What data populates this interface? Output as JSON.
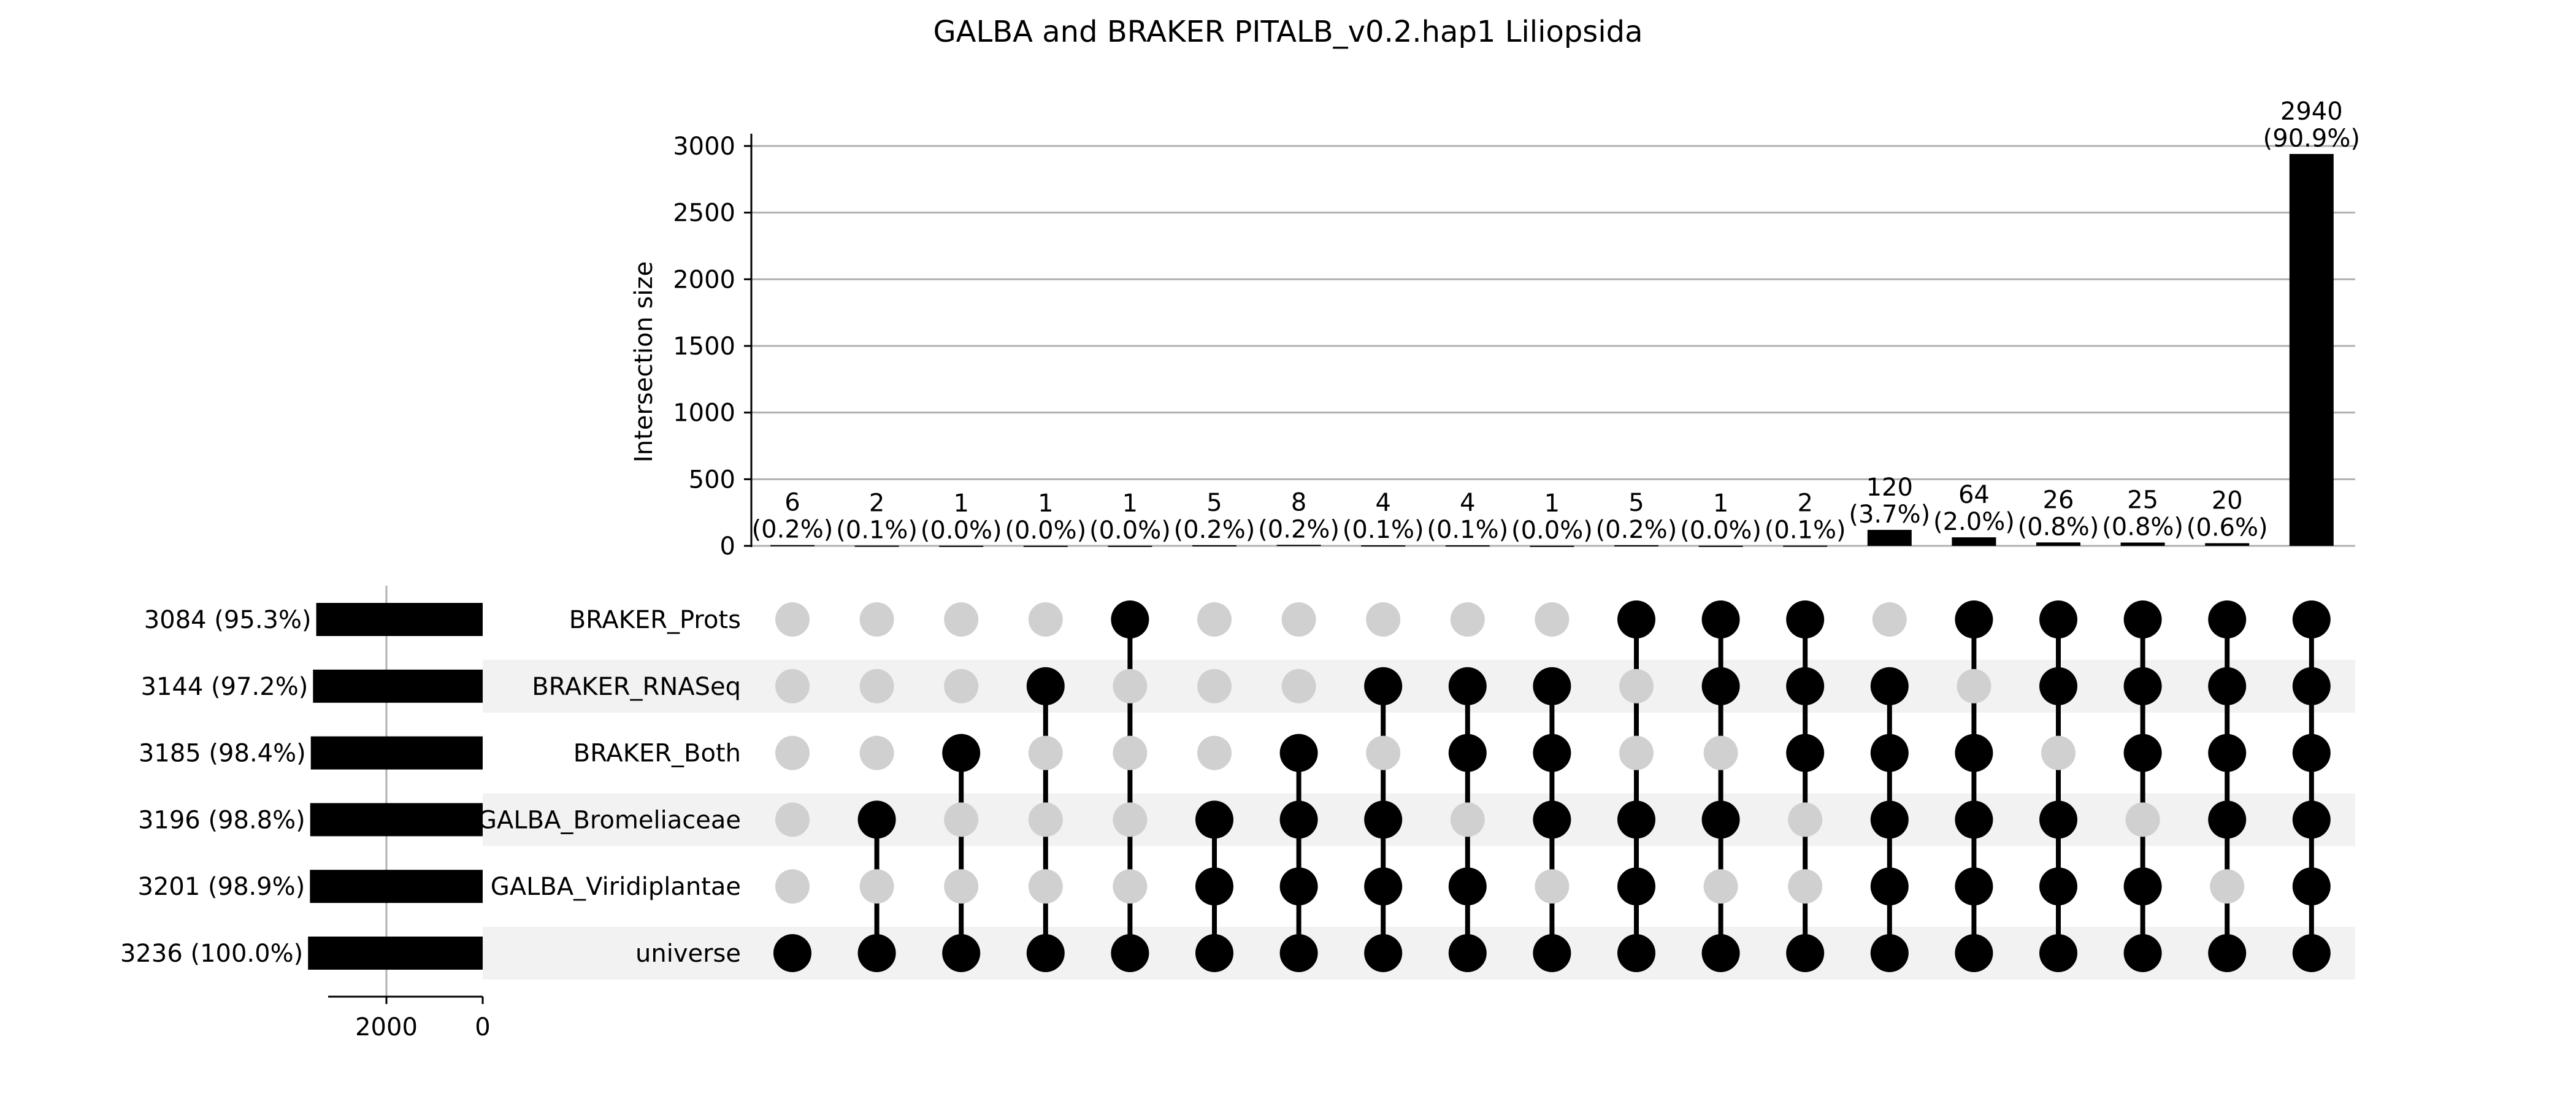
{
  "chart_data": {
    "type": "upset",
    "title": "GALBA and BRAKER PITALB_v0.2.hap1 Liliopsida",
    "ylabel": "Intersection size",
    "ylim": [
      0,
      3000
    ],
    "yticks": [
      "0",
      "500",
      "1000",
      "1500",
      "2000",
      "2500",
      "3000"
    ],
    "set_size_ticks": [
      "2000",
      "0"
    ],
    "grid": true,
    "sets": [
      {
        "name": "BRAKER_Prots",
        "size": 3084,
        "label": "3084 (95.3%)"
      },
      {
        "name": "BRAKER_RNASeq",
        "size": 3144,
        "label": "3144 (97.2%)"
      },
      {
        "name": "BRAKER_Both",
        "size": 3185,
        "label": "3185 (98.4%)"
      },
      {
        "name": "GALBA_Bromeliaceae",
        "size": 3196,
        "label": "3196 (98.8%)"
      },
      {
        "name": "GALBA_Viridiplantae",
        "size": 3201,
        "label": "3201 (98.9%)"
      },
      {
        "name": "universe",
        "size": 3236,
        "label": "3236 (100.0%)"
      }
    ],
    "intersections": [
      {
        "value": 6,
        "count": "6",
        "pct": "(0.2%)",
        "members": [
          0,
          0,
          0,
          0,
          0,
          1
        ]
      },
      {
        "value": 2,
        "count": "2",
        "pct": "(0.1%)",
        "members": [
          0,
          0,
          0,
          1,
          0,
          1
        ]
      },
      {
        "value": 1,
        "count": "1",
        "pct": "(0.0%)",
        "members": [
          0,
          0,
          1,
          0,
          0,
          1
        ]
      },
      {
        "value": 1,
        "count": "1",
        "pct": "(0.0%)",
        "members": [
          0,
          1,
          0,
          0,
          0,
          1
        ]
      },
      {
        "value": 1,
        "count": "1",
        "pct": "(0.0%)",
        "members": [
          1,
          0,
          0,
          0,
          0,
          1
        ]
      },
      {
        "value": 5,
        "count": "5",
        "pct": "(0.2%)",
        "members": [
          0,
          0,
          0,
          1,
          1,
          1
        ]
      },
      {
        "value": 8,
        "count": "8",
        "pct": "(0.2%)",
        "members": [
          0,
          0,
          1,
          1,
          1,
          1
        ]
      },
      {
        "value": 4,
        "count": "4",
        "pct": "(0.1%)",
        "members": [
          0,
          1,
          0,
          1,
          1,
          1
        ]
      },
      {
        "value": 4,
        "count": "4",
        "pct": "(0.1%)",
        "members": [
          0,
          1,
          1,
          0,
          1,
          1
        ]
      },
      {
        "value": 1,
        "count": "1",
        "pct": "(0.0%)",
        "members": [
          0,
          1,
          1,
          1,
          0,
          1
        ]
      },
      {
        "value": 5,
        "count": "5",
        "pct": "(0.2%)",
        "members": [
          1,
          0,
          0,
          1,
          1,
          1
        ]
      },
      {
        "value": 1,
        "count": "1",
        "pct": "(0.0%)",
        "members": [
          1,
          1,
          0,
          1,
          0,
          1
        ]
      },
      {
        "value": 2,
        "count": "2",
        "pct": "(0.1%)",
        "members": [
          1,
          1,
          1,
          0,
          0,
          1
        ]
      },
      {
        "value": 120,
        "count": "120",
        "pct": "(3.7%)",
        "members": [
          0,
          1,
          1,
          1,
          1,
          1
        ]
      },
      {
        "value": 64,
        "count": "64",
        "pct": "(2.0%)",
        "members": [
          1,
          0,
          1,
          1,
          1,
          1
        ]
      },
      {
        "value": 26,
        "count": "26",
        "pct": "(0.8%)",
        "members": [
          1,
          1,
          0,
          1,
          1,
          1
        ]
      },
      {
        "value": 25,
        "count": "25",
        "pct": "(0.8%)",
        "members": [
          1,
          1,
          1,
          0,
          1,
          1
        ]
      },
      {
        "value": 20,
        "count": "20",
        "pct": "(0.6%)",
        "members": [
          1,
          1,
          1,
          1,
          0,
          1
        ]
      },
      {
        "value": 2940,
        "count": "2940",
        "pct": "(90.9%)",
        "members": [
          1,
          1,
          1,
          1,
          1,
          1
        ]
      }
    ],
    "colors": {
      "bar": "#000000",
      "dot_on": "#000000",
      "dot_off": "#d0d0d0",
      "stripe": "#f2f2f2",
      "grid": "#b0b0b0"
    }
  }
}
